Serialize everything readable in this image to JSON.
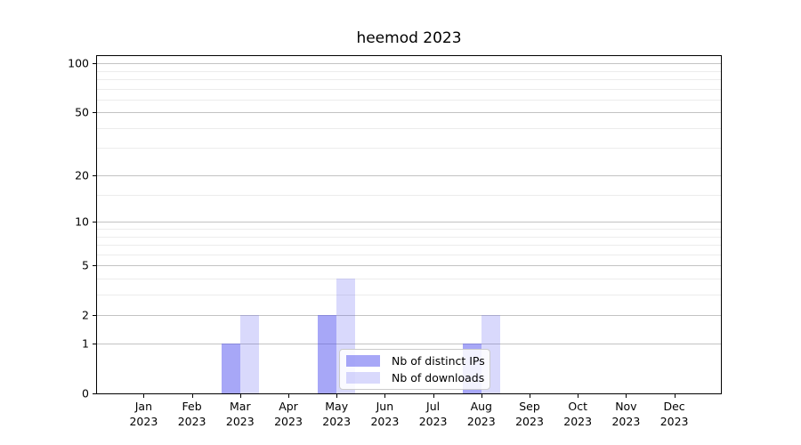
{
  "chart_data": {
    "type": "bar",
    "title": "heemod 2023",
    "year": "2023",
    "categories": [
      "Jan",
      "Feb",
      "Mar",
      "Apr",
      "May",
      "Jun",
      "Jul",
      "Aug",
      "Sep",
      "Oct",
      "Nov",
      "Dec"
    ],
    "series": [
      {
        "name": "Nb of distinct IPs",
        "color": "rgba(80,80,240,0.5)",
        "values": [
          0,
          0,
          1,
          0,
          2,
          0,
          0,
          1,
          0,
          0,
          0,
          0
        ]
      },
      {
        "name": "Nb of downloads",
        "color": "rgba(80,80,240,0.22)",
        "values": [
          0,
          0,
          2,
          0,
          4,
          0,
          0,
          2,
          0,
          0,
          0,
          0
        ]
      }
    ],
    "y_axis": {
      "scale": "log1p",
      "ticks": [
        0,
        1,
        2,
        5,
        10,
        20,
        50,
        100
      ],
      "minor_ticks": [
        3,
        4,
        6,
        7,
        8,
        9,
        15,
        30,
        40,
        60,
        70,
        80,
        90
      ],
      "max": 111
    },
    "x_axis": {
      "tick_label_lines": 2
    },
    "legend_position": "lower center",
    "grid": true,
    "colors": {
      "grid_major": "#c3c3c3",
      "grid_minor": "#ececec",
      "axis": "#000000",
      "background": "#ffffff"
    }
  }
}
